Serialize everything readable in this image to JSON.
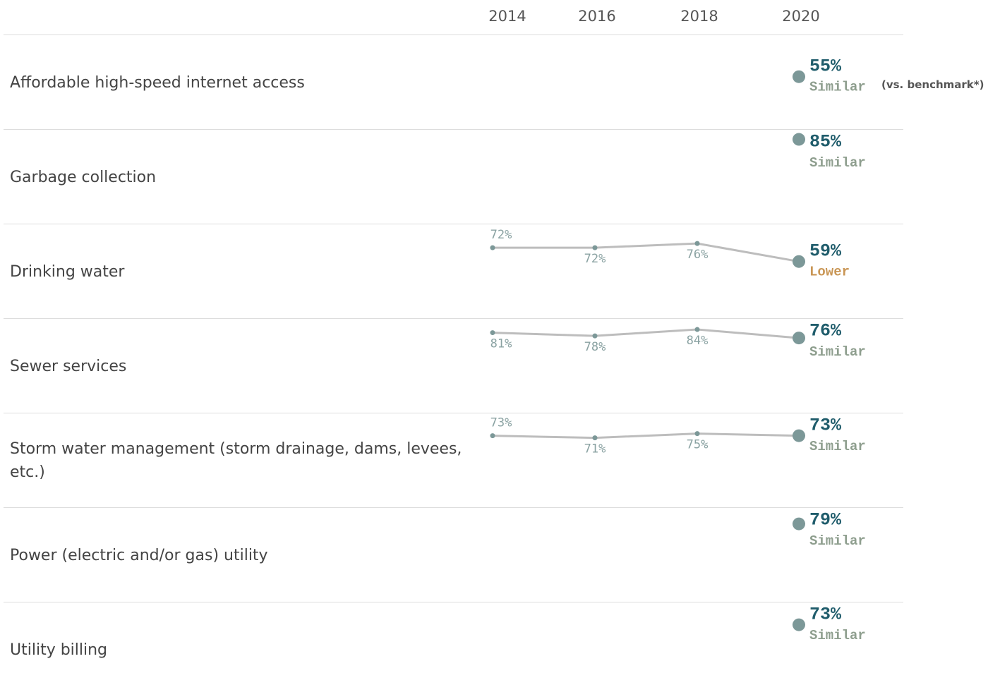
{
  "chart_data": {
    "type": "line",
    "categories": [
      "2014",
      "2016",
      "2018",
      "2020"
    ],
    "ylim": [
      5,
      94
    ],
    "note": "(vs. benchmark*)",
    "line_color": "#bdbdbd",
    "dot_color": "#7c9898",
    "value_color": "#1f5c6b",
    "comparison_colors": {
      "Similar": "#8e9e8e",
      "Lower": "#c99655"
    },
    "series": [
      {
        "name": "Affordable high-speed internet access",
        "values": [
          null,
          null,
          null,
          55
        ],
        "value_labels": [
          null,
          null,
          null,
          "55%"
        ],
        "comparison": "Similar"
      },
      {
        "name": "Garbage collection",
        "values": [
          null,
          null,
          null,
          85
        ],
        "value_labels": [
          null,
          null,
          null,
          "85%"
        ],
        "comparison": "Similar"
      },
      {
        "name": "Drinking water",
        "values": [
          72,
          72,
          76,
          59
        ],
        "value_labels": [
          "72%",
          "72%",
          "76%",
          "59%"
        ],
        "comparison": "Lower"
      },
      {
        "name": "Sewer services",
        "values": [
          81,
          78,
          84,
          76
        ],
        "value_labels": [
          "81%",
          "78%",
          "84%",
          "76%"
        ],
        "comparison": "Similar"
      },
      {
        "name": "Storm water management (storm drainage, dams, levees, etc.)",
        "values": [
          73,
          71,
          75,
          73
        ],
        "value_labels": [
          "73%",
          "71%",
          "75%",
          "73%"
        ],
        "comparison": "Similar"
      },
      {
        "name": "Power (electric and/or gas) utility",
        "values": [
          null,
          null,
          null,
          79
        ],
        "value_labels": [
          null,
          null,
          null,
          "79%"
        ],
        "comparison": "Similar"
      },
      {
        "name": "Utility billing",
        "values": [
          null,
          null,
          null,
          73
        ],
        "value_labels": [
          null,
          null,
          null,
          "73%"
        ],
        "comparison": "Similar"
      }
    ]
  }
}
